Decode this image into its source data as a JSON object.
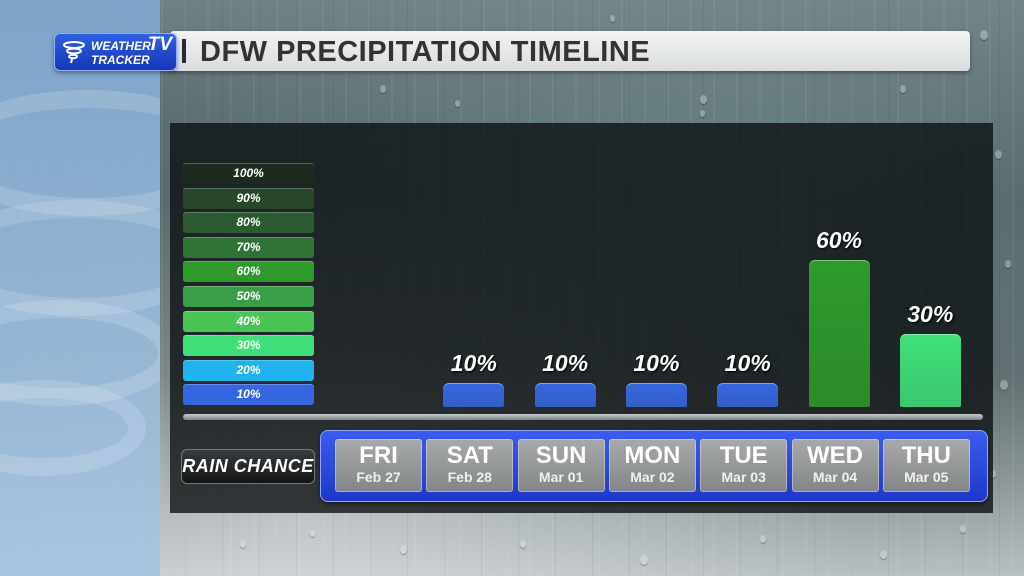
{
  "brand": {
    "line1": "WEATHER",
    "line2": "TRACKER",
    "tv": "TV"
  },
  "header": {
    "title": "DFW PRECIPITATION TIMELINE"
  },
  "legend": [
    {
      "label": "100%",
      "color": "#1f2a1f"
    },
    {
      "label": "90%",
      "color": "#27462a"
    },
    {
      "label": "80%",
      "color": "#2c5a31"
    },
    {
      "label": "70%",
      "color": "#2f7436"
    },
    {
      "label": "60%",
      "color": "#2e9a2c"
    },
    {
      "label": "50%",
      "color": "#3a9d48"
    },
    {
      "label": "40%",
      "color": "#4bc456"
    },
    {
      "label": "30%",
      "color": "#3fe07a"
    },
    {
      "label": "20%",
      "color": "#21b3ee"
    },
    {
      "label": "10%",
      "color": "#3567e0"
    }
  ],
  "row_label": "RAIN CHANCE",
  "chart_data": {
    "type": "bar",
    "title": "DFW PRECIPITATION TIMELINE",
    "categories": [
      "FRI",
      "SAT",
      "SUN",
      "MON",
      "TUE",
      "WED",
      "THU"
    ],
    "dates": [
      "Feb 27",
      "Feb 28",
      "Mar 01",
      "Mar 02",
      "Mar 03",
      "Mar 04",
      "Mar 05"
    ],
    "values": [
      0,
      10,
      10,
      10,
      10,
      60,
      30
    ],
    "value_labels": [
      "",
      "10%",
      "10%",
      "10%",
      "10%",
      "60%",
      "30%"
    ],
    "bar_colors": [
      "#3567e0",
      "#3567e0",
      "#3567e0",
      "#3567e0",
      "#3567e0",
      "#2e9a2c",
      "#3fe07a"
    ],
    "ylim": [
      0,
      100
    ],
    "unit": "%"
  }
}
